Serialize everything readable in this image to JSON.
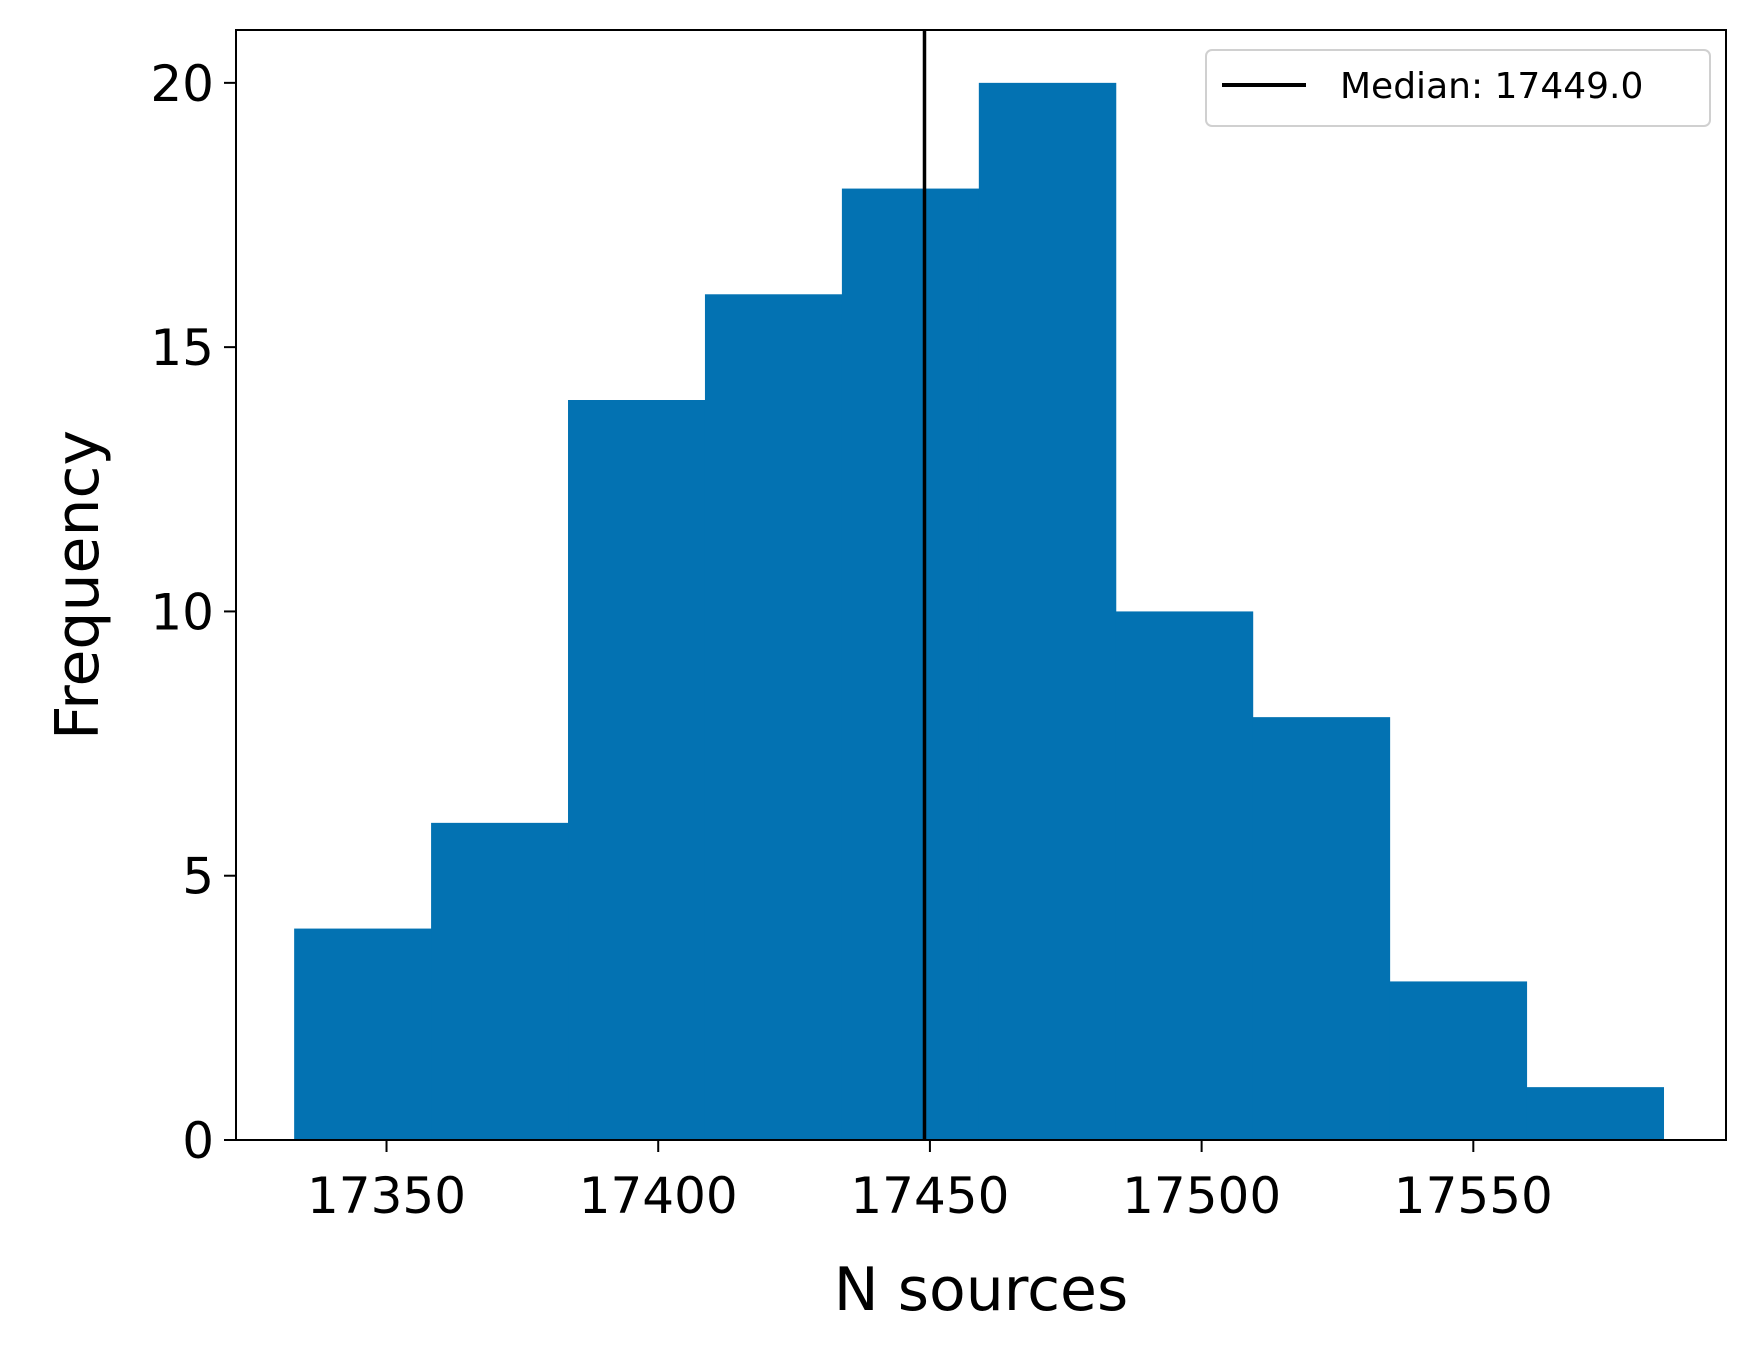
{
  "chart_data": {
    "type": "bar",
    "subtype": "histogram",
    "xlabel": "N sources",
    "ylabel": "Frequency",
    "xlim": [
      17322.3,
      17596.5
    ],
    "ylim": [
      0,
      21
    ],
    "x_ticks": [
      17350,
      17400,
      17450,
      17500,
      17550
    ],
    "y_ticks": [
      0,
      5,
      10,
      15,
      20
    ],
    "bins": [
      {
        "start": 17333,
        "end": 17358.2,
        "count": 4
      },
      {
        "start": 17358.2,
        "end": 17383.4,
        "count": 6
      },
      {
        "start": 17383.4,
        "end": 17408.6,
        "count": 14
      },
      {
        "start": 17408.6,
        "end": 17433.8,
        "count": 16
      },
      {
        "start": 17433.8,
        "end": 17459,
        "count": 18
      },
      {
        "start": 17459,
        "end": 17484.2,
        "count": 20
      },
      {
        "start": 17484.2,
        "end": 17509.4,
        "count": 10
      },
      {
        "start": 17509.4,
        "end": 17534.6,
        "count": 8
      },
      {
        "start": 17534.6,
        "end": 17559.8,
        "count": 3
      },
      {
        "start": 17559.8,
        "end": 17585,
        "count": 1
      }
    ],
    "median": 17449.0,
    "legend": {
      "label": "Median: 17449.0",
      "position": "top-right"
    },
    "grid": false,
    "colors": {
      "bar": "#0372b2",
      "median_line": "#000000",
      "axes": "#000000"
    }
  }
}
